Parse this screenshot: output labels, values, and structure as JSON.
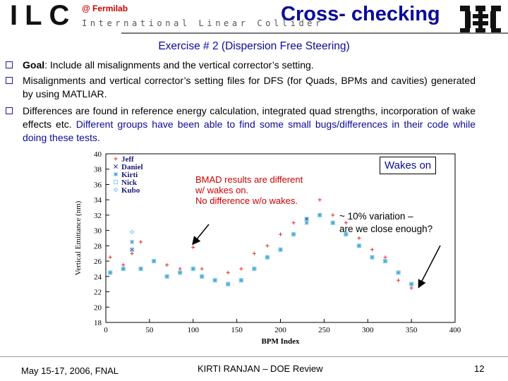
{
  "header": {
    "logo_text": "ILC",
    "logo_subtitle": "International Linear Collider",
    "lab": "@ Fermilab",
    "title": "Cross- checking"
  },
  "subtitle": "Exercise # 2  (Dispersion Free Steering)",
  "bullets": [
    {
      "lead": "Goal",
      "text": ": Include all misalignments and the vertical corrector’s setting."
    },
    {
      "text": "Misalignments and vertical corrector’s setting files for DFS (for Quads, BPMs and cavities) generated by using MATLIAR."
    },
    {
      "text": "Differences are found in reference energy calculation, integrated quad strengths, incorporation of wake effects etc. ",
      "highlight": "Different groups have been able to find some small bugs/differences in their code while doing these tests."
    }
  ],
  "annotations": {
    "bmad": [
      "BMAD results are different",
      "w/ wakes on.",
      "No difference w/o wakes."
    ],
    "wakes_on": "Wakes on",
    "variation": [
      "~ 10% variation –",
      "are we close enough?"
    ]
  },
  "footer": {
    "date": "May 15-17, 2006, FNAL",
    "center": "KIRTI RANJAN – DOE Review",
    "page": "12"
  },
  "colors": {
    "title_blue": "#0b0b99",
    "annotation_red": "#cc0000",
    "series_jeff": "#e03030",
    "series_daniel": "#2a3aa0",
    "series_kirti": "#3aa0c8",
    "series_nick": "#8fd0e8",
    "series_kubo": "#7cc8e8"
  },
  "chart_data": {
    "type": "scatter",
    "xlabel": "BPM Index",
    "ylabel": "Vertical Emittance (nm)",
    "xlim": [
      0,
      400
    ],
    "ylim": [
      18,
      40
    ],
    "xticks": [
      0,
      50,
      100,
      150,
      200,
      250,
      300,
      350,
      400
    ],
    "yticks": [
      18,
      20,
      22,
      24,
      26,
      28,
      30,
      32,
      34,
      36,
      38,
      40
    ],
    "legend_position": "top-left",
    "series": [
      {
        "name": "Jeff",
        "marker": "plus",
        "x": [
          5,
          20,
          30,
          40,
          55,
          70,
          85,
          100,
          110,
          125,
          140,
          155,
          170,
          185,
          200,
          215,
          230,
          245,
          260,
          275,
          290,
          305,
          320,
          335,
          350
        ],
        "y": [
          26.5,
          25.5,
          27,
          28.5,
          26,
          25.5,
          25,
          27.8,
          25,
          23.5,
          24.5,
          25,
          27,
          28,
          29.5,
          31,
          31.5,
          34,
          32,
          31,
          29,
          27.5,
          26.5,
          23.5,
          22.5
        ]
      },
      {
        "name": "Daniel",
        "marker": "x",
        "x": [
          5,
          20,
          30,
          40,
          55,
          70,
          85,
          100,
          110,
          125,
          140,
          155,
          170,
          185,
          200,
          215,
          230,
          245,
          260,
          275,
          290,
          305,
          320,
          335,
          350
        ],
        "y": [
          24.5,
          25,
          27.5,
          25,
          26,
          24,
          24.5,
          25,
          24,
          23.5,
          23,
          23.5,
          25,
          26.5,
          27.5,
          29.5,
          31.5,
          32,
          31,
          29.5,
          28,
          26.5,
          26,
          24.5,
          23
        ]
      },
      {
        "name": "Kirti",
        "marker": "star",
        "x": [
          5,
          20,
          30,
          40,
          55,
          70,
          85,
          100,
          110,
          125,
          140,
          155,
          170,
          185,
          200,
          215,
          230,
          245,
          260,
          275,
          290,
          305,
          320,
          335,
          350
        ],
        "y": [
          24.5,
          25,
          28.5,
          25,
          26,
          24,
          24.5,
          25,
          24,
          23.5,
          23,
          23.5,
          25,
          26.5,
          27.5,
          29.5,
          31,
          32,
          31,
          29.5,
          28,
          26.5,
          26,
          24.5,
          23
        ]
      },
      {
        "name": "Nick",
        "marker": "square",
        "x": [
          5,
          20,
          30,
          40,
          55,
          70,
          85,
          100,
          110,
          125,
          140,
          155,
          170,
          185,
          200,
          215,
          230,
          245,
          260,
          275,
          290,
          305,
          320,
          335,
          350
        ],
        "y": [
          24.5,
          25,
          27.5,
          25,
          26,
          24,
          24.5,
          25,
          24,
          23.5,
          23,
          23.5,
          25,
          26.5,
          27.5,
          29.5,
          31.5,
          32,
          31,
          29.5,
          28,
          26.5,
          26,
          24.5,
          23
        ]
      },
      {
        "name": "Kubo",
        "marker": "diamond",
        "x": [
          5,
          20,
          30,
          40,
          55,
          70,
          85,
          100,
          110,
          125,
          140,
          155,
          170,
          185,
          200,
          215,
          230,
          245,
          260,
          275,
          290,
          305,
          320,
          335,
          350
        ],
        "y": [
          24.5,
          25,
          29.8,
          25,
          26,
          24,
          24.5,
          25,
          24,
          23.5,
          23,
          23.5,
          25,
          26.5,
          27.5,
          29.5,
          31.5,
          32,
          31,
          29.5,
          28,
          26.5,
          26,
          24.5,
          23
        ]
      }
    ]
  }
}
